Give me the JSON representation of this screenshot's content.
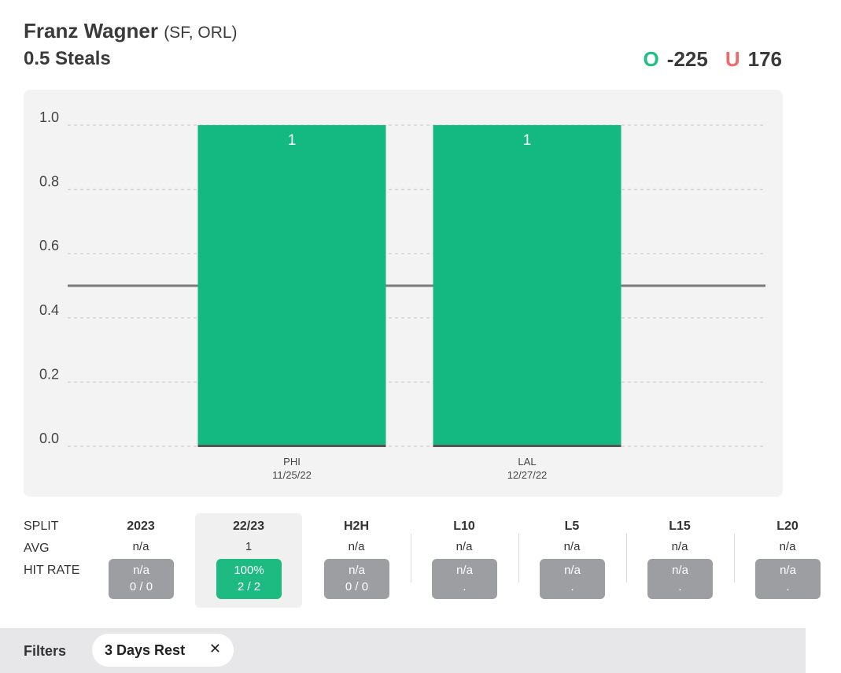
{
  "header": {
    "player_name": "Franz Wagner",
    "player_teams": "(SF, ORL)",
    "prop_line": "0.5 Steals",
    "over": {
      "letter": "O",
      "odds": "-225",
      "color": "#1fbf84"
    },
    "under": {
      "letter": "U",
      "odds": "176",
      "color": "#ef6b6b"
    }
  },
  "chart_data": {
    "type": "bar",
    "categories": [
      {
        "opponent": "PHI",
        "date": "11/25/22"
      },
      {
        "opponent": "LAL",
        "date": "12/27/22"
      }
    ],
    "values": [
      1,
      1
    ],
    "value_labels": [
      "1",
      "1"
    ],
    "ylim": [
      0,
      1
    ],
    "yticks": [
      "0.0",
      "0.2",
      "0.4",
      "0.6",
      "0.8",
      "1.0"
    ],
    "threshold": 0.5,
    "bar_color": "#13b980",
    "grid": true
  },
  "splits": {
    "row_labels": {
      "split": "SPLIT",
      "avg": "AVG",
      "hit_rate": "HIT RATE"
    },
    "columns": [
      {
        "label": "2023",
        "avg": "n/a",
        "hit_pct": "n/a",
        "hit_count": "0 / 0",
        "selected": false,
        "hit": false
      },
      {
        "label": "22/23",
        "avg": "1",
        "hit_pct": "100%",
        "hit_count": "2 / 2",
        "selected": true,
        "hit": true
      },
      {
        "label": "H2H",
        "avg": "n/a",
        "hit_pct": "n/a",
        "hit_count": "0 / 0",
        "selected": false,
        "hit": false
      },
      {
        "label": "L10",
        "avg": "n/a",
        "hit_pct": "n/a",
        "hit_count": ".",
        "selected": false,
        "hit": false
      },
      {
        "label": "L5",
        "avg": "n/a",
        "hit_pct": "n/a",
        "hit_count": ".",
        "selected": false,
        "hit": false
      },
      {
        "label": "L15",
        "avg": "n/a",
        "hit_pct": "n/a",
        "hit_count": ".",
        "selected": false,
        "hit": false
      },
      {
        "label": "L20",
        "avg": "n/a",
        "hit_pct": "n/a",
        "hit_count": ".",
        "selected": false,
        "hit": false
      }
    ]
  },
  "filters": {
    "label": "Filters",
    "chips": [
      {
        "label": "3 Days Rest",
        "close_icon": "close-icon"
      }
    ]
  }
}
